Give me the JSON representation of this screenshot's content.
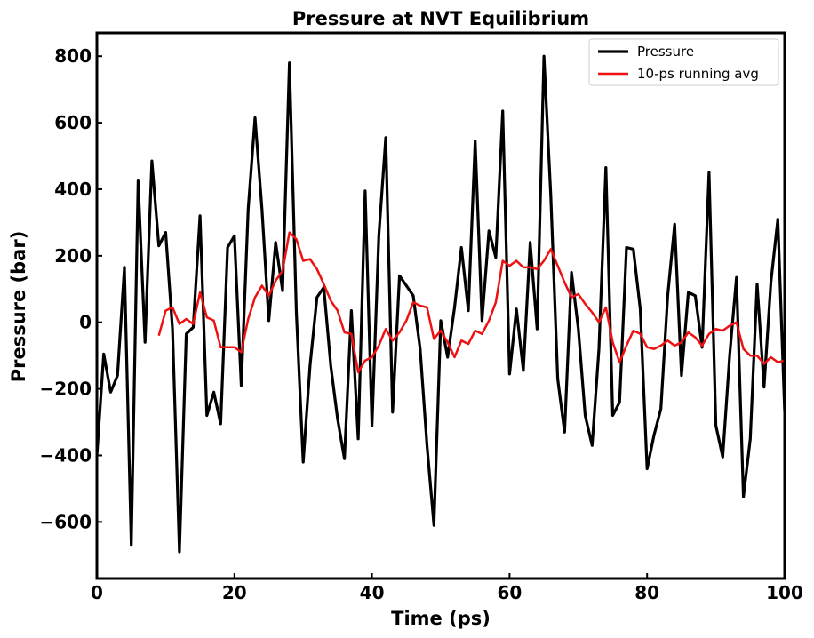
{
  "chart_data": {
    "type": "line",
    "title": "Pressure at NVT Equilibrium",
    "xlabel": "Time (ps)",
    "ylabel": "Pressure (bar)",
    "xlim": [
      0,
      100
    ],
    "ylim": [
      -770,
      870
    ],
    "x_ticks": [
      0,
      20,
      40,
      60,
      80,
      100
    ],
    "y_ticks": [
      -600,
      -400,
      -200,
      0,
      200,
      400,
      600,
      800
    ],
    "y_tick_labels": [
      "−600",
      "−400",
      "−200",
      "0",
      "200",
      "400",
      "600",
      "800"
    ],
    "grid": false,
    "legend_position": "top-right",
    "series": [
      {
        "name": "Pressure",
        "color": "#000000",
        "x": [
          0,
          1,
          2,
          3,
          4,
          5,
          6,
          7,
          8,
          9,
          10,
          11,
          12,
          13,
          14,
          15,
          16,
          17,
          18,
          19,
          20,
          21,
          22,
          23,
          24,
          25,
          26,
          27,
          28,
          29,
          30,
          31,
          32,
          33,
          34,
          35,
          36,
          37,
          38,
          39,
          40,
          41,
          42,
          43,
          44,
          45,
          46,
          47,
          48,
          49,
          50,
          51,
          52,
          53,
          54,
          55,
          56,
          57,
          58,
          59,
          60,
          61,
          62,
          63,
          64,
          65,
          66,
          67,
          68,
          69,
          70,
          71,
          72,
          73,
          74,
          75,
          76,
          77,
          78,
          79,
          80,
          81,
          82,
          83,
          84,
          85,
          86,
          87,
          88,
          89,
          90,
          91,
          92,
          93,
          94,
          95,
          96,
          97,
          98,
          99,
          100
        ],
        "y": [
          -400,
          -95,
          -210,
          -160,
          165,
          -670,
          425,
          -60,
          485,
          230,
          270,
          -20,
          -690,
          -35,
          -15,
          320,
          -280,
          -210,
          -305,
          225,
          260,
          -190,
          340,
          615,
          340,
          5,
          240,
          95,
          780,
          30,
          -420,
          -130,
          75,
          105,
          -130,
          -290,
          -410,
          35,
          -350,
          395,
          -310,
          260,
          555,
          -270,
          140,
          110,
          80,
          -80,
          -370,
          -610,
          5,
          -105,
          45,
          225,
          35,
          545,
          5,
          275,
          195,
          635,
          -155,
          40,
          -145,
          240,
          -20,
          800,
          380,
          -170,
          -330,
          150,
          -20,
          -280,
          -370,
          -80,
          465,
          -280,
          -240,
          225,
          220,
          40,
          -440,
          -340,
          -260,
          80,
          295,
          -160,
          90,
          80,
          -75,
          450,
          -310,
          -405,
          -100,
          135,
          -525,
          -350,
          115,
          -195,
          120,
          310,
          -270
        ]
      },
      {
        "name": "10-ps running avg",
        "color": "#ee1111",
        "x": [
          9,
          10,
          11,
          12,
          13,
          14,
          15,
          16,
          17,
          18,
          19,
          20,
          21,
          22,
          23,
          24,
          25,
          26,
          27,
          28,
          29,
          30,
          31,
          32,
          33,
          34,
          35,
          36,
          37,
          38,
          39,
          40,
          41,
          42,
          43,
          44,
          45,
          46,
          47,
          48,
          49,
          50,
          51,
          52,
          53,
          54,
          55,
          56,
          57,
          58,
          59,
          60,
          61,
          62,
          63,
          64,
          65,
          66,
          67,
          68,
          69,
          70,
          71,
          72,
          73,
          74,
          75,
          76,
          77,
          78,
          79,
          80,
          81,
          82,
          83,
          84,
          85,
          86,
          87,
          88,
          89,
          90,
          91,
          92,
          93,
          94,
          95,
          96,
          97,
          98,
          99,
          100
        ],
        "y": [
          -40,
          35,
          45,
          -5,
          10,
          -5,
          90,
          15,
          5,
          -75,
          -75,
          -75,
          -90,
          10,
          75,
          110,
          80,
          125,
          155,
          270,
          250,
          185,
          190,
          160,
          115,
          65,
          35,
          -30,
          -35,
          -150,
          -115,
          -105,
          -70,
          -20,
          -55,
          -30,
          5,
          60,
          50,
          45,
          -50,
          -25,
          -60,
          -105,
          -55,
          -65,
          -25,
          -35,
          5,
          60,
          185,
          170,
          185,
          165,
          165,
          160,
          185,
          220,
          170,
          120,
          75,
          85,
          55,
          30,
          0,
          45,
          -60,
          -120,
          -70,
          -25,
          -35,
          -75,
          -80,
          -70,
          -55,
          -70,
          -60,
          -30,
          -45,
          -70,
          -35,
          -20,
          -25,
          -10,
          0,
          -80,
          -100,
          -100,
          -125,
          -105,
          -120,
          -115
        ]
      }
    ]
  }
}
